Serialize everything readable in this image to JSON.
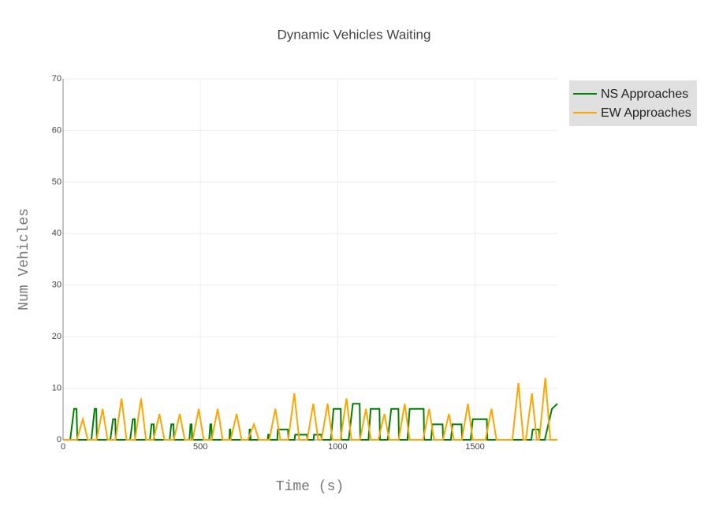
{
  "chart_data": {
    "type": "line",
    "title": "Dynamic Vehicles Waiting",
    "xlabel": "Time (s)",
    "ylabel": "Num Vehicles",
    "xlim": [
      0,
      1800
    ],
    "xticks": [
      0,
      500,
      1000,
      1500
    ],
    "ylim": [
      0,
      70
    ],
    "yticks": [
      0,
      10,
      20,
      30,
      40,
      50,
      60,
      70
    ],
    "grid": true,
    "legend": "outside-top-right",
    "series": [
      {
        "name": "NS Approaches",
        "color": "#008000",
        "x": [
          0,
          26,
          40,
          49,
          52,
          103,
          115,
          121,
          123,
          172,
          182,
          190,
          192,
          244,
          254,
          261,
          263,
          316,
          322,
          330,
          332,
          388,
          394,
          402,
          404,
          460,
          464,
          468,
          470,
          532,
          536,
          540,
          542,
          606,
          607,
          609,
          611,
          678,
          679,
          681,
          683,
          745,
          747,
          749,
          751,
          780,
          782,
          819,
          821,
          843,
          845,
          888,
          890,
          912,
          914,
          940,
          942,
          975,
          985,
          1011,
          1013,
          1040,
          1055,
          1080,
          1082,
          1112,
          1120,
          1152,
          1154,
          1182,
          1195,
          1221,
          1223,
          1254,
          1262,
          1313,
          1315,
          1340,
          1345,
          1382,
          1384,
          1412,
          1418,
          1451,
          1453,
          1484,
          1492,
          1543,
          1545,
          1705,
          1710,
          1733,
          1735,
          1754,
          1780,
          1800
        ],
        "values": [
          0,
          0,
          6,
          6,
          0,
          0,
          6,
          6,
          0,
          0,
          4,
          4,
          0,
          0,
          4,
          4,
          0,
          0,
          3,
          3,
          0,
          0,
          3,
          3,
          0,
          0,
          3,
          3,
          0,
          0,
          3,
          3,
          0,
          0,
          2,
          2,
          0,
          0,
          2,
          2,
          0,
          0,
          1,
          1,
          0,
          0,
          2,
          2,
          0,
          0,
          1,
          1,
          0,
          0,
          1,
          1,
          0,
          0,
          6,
          6,
          0,
          0,
          7,
          7,
          0,
          0,
          6,
          6,
          0,
          0,
          6,
          6,
          0,
          0,
          6,
          6,
          0,
          0,
          3,
          3,
          0,
          0,
          3,
          3,
          0,
          0,
          4,
          4,
          0,
          0,
          2,
          2,
          0,
          0,
          6,
          7
        ]
      },
      {
        "name": "EW Approaches",
        "color": "#ffa500",
        "x": [
          0,
          50,
          72,
          90,
          122,
          144,
          162,
          191,
          213,
          231,
          262,
          284,
          302,
          329,
          351,
          369,
          403,
          425,
          443,
          472,
          494,
          512,
          541,
          563,
          581,
          610,
          632,
          650,
          673,
          695,
          713,
          751,
          773,
          791,
          820,
          842,
          860,
          889,
          911,
          929,
          941,
          963,
          981,
          1010,
          1032,
          1050,
          1081,
          1103,
          1121,
          1148,
          1170,
          1188,
          1222,
          1244,
          1262,
          1311,
          1333,
          1351,
          1383,
          1405,
          1423,
          1452,
          1474,
          1492,
          1538,
          1560,
          1578,
          1636,
          1658,
          1676,
          1685,
          1707,
          1725,
          1734,
          1756,
          1774,
          1800
        ],
        "values": [
          0,
          0,
          4,
          0,
          0,
          6,
          0,
          0,
          8,
          0,
          0,
          8,
          0,
          0,
          5,
          0,
          0,
          5,
          0,
          0,
          6,
          0,
          0,
          6,
          0,
          0,
          5,
          0,
          0,
          3,
          0,
          0,
          6,
          0,
          0,
          9,
          0,
          0,
          7,
          0,
          0,
          7,
          0,
          0,
          8,
          0,
          0,
          6,
          0,
          0,
          5,
          0,
          0,
          7,
          0,
          0,
          6,
          0,
          0,
          5,
          0,
          0,
          7,
          0,
          0,
          6,
          0,
          0,
          11,
          0,
          0,
          9,
          0,
          0,
          12,
          0,
          0
        ]
      }
    ]
  }
}
